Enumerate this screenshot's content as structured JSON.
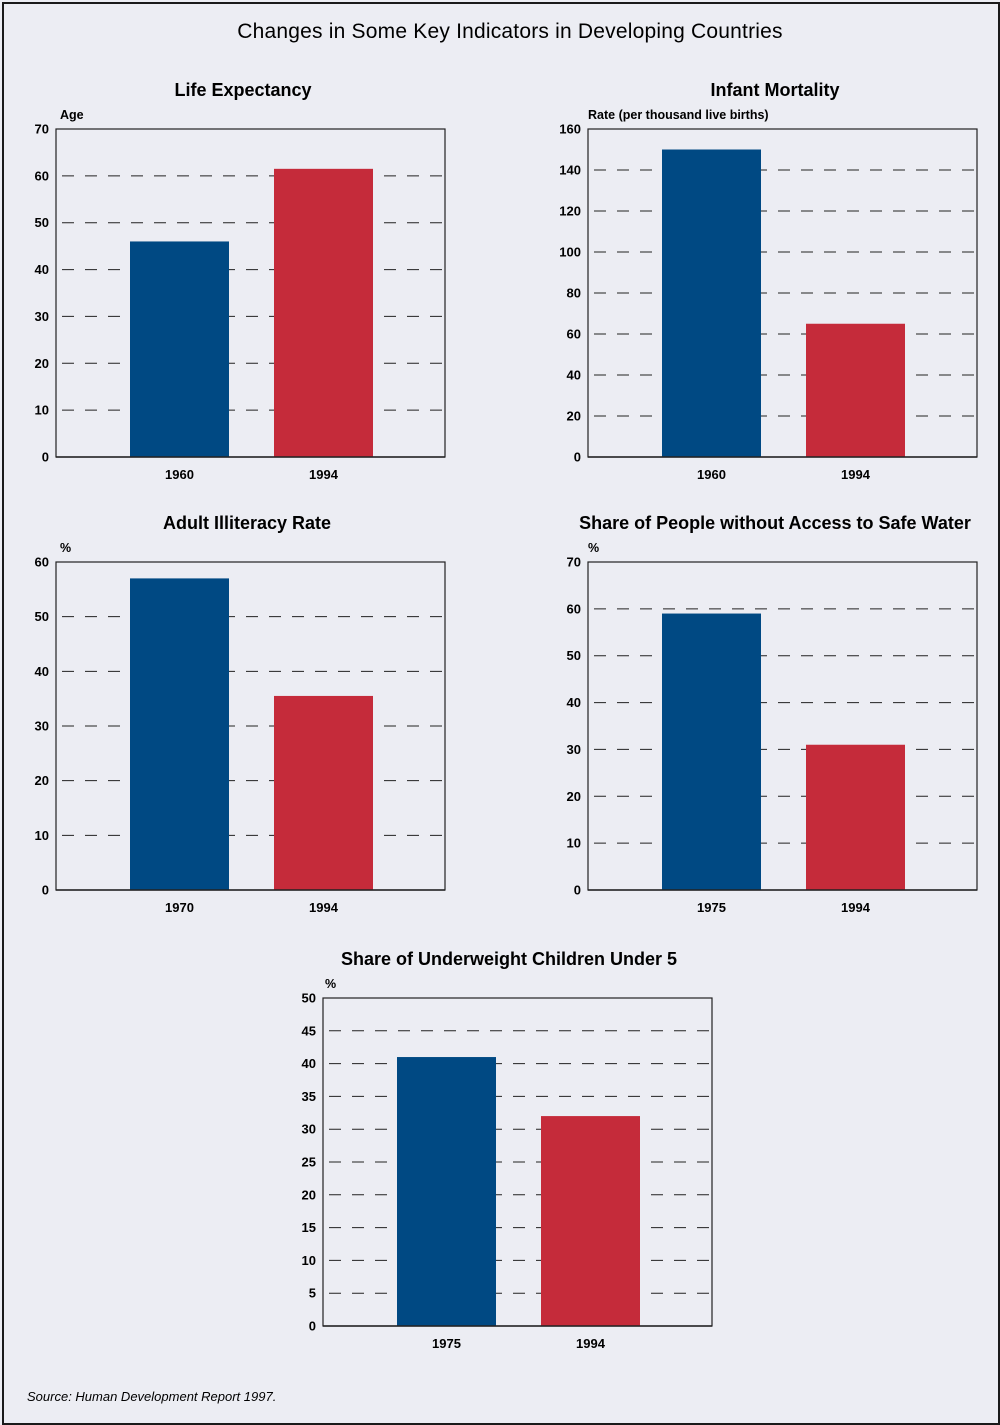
{
  "page_title": "Changes in Some Key Indicators in Developing Countries",
  "source": "Source: Human Development Report 1997.",
  "colors": {
    "first_bar": "#004983",
    "second_bar": "#c52b3a",
    "background": "#ecedf3"
  },
  "chart_data": [
    {
      "type": "bar",
      "title": "Life Expectancy",
      "ylabel": "Age",
      "categories": [
        "1960",
        "1994"
      ],
      "values": [
        46,
        61.5
      ],
      "ylim": [
        0,
        70
      ],
      "yticks": [
        0,
        10,
        20,
        30,
        40,
        50,
        60,
        70
      ],
      "grid": "dashed"
    },
    {
      "type": "bar",
      "title": "Infant Mortality",
      "ylabel": "Rate (per thousand live births)",
      "categories": [
        "1960",
        "1994"
      ],
      "values": [
        150,
        65
      ],
      "ylim": [
        0,
        160
      ],
      "yticks": [
        0,
        20,
        40,
        60,
        80,
        100,
        120,
        140,
        160
      ],
      "grid": "dashed"
    },
    {
      "type": "bar",
      "title": "Adult Illiteracy Rate",
      "ylabel": "%",
      "categories": [
        "1970",
        "1994"
      ],
      "values": [
        57,
        35.5
      ],
      "ylim": [
        0,
        60
      ],
      "yticks": [
        0,
        10,
        20,
        30,
        40,
        50,
        60
      ],
      "grid": "dashed"
    },
    {
      "type": "bar",
      "title": "Share of People without Access to Safe Water",
      "ylabel": "%",
      "categories": [
        "1975",
        "1994"
      ],
      "values": [
        59,
        31
      ],
      "ylim": [
        0,
        70
      ],
      "yticks": [
        0,
        10,
        20,
        30,
        40,
        50,
        60,
        70
      ],
      "grid": "dashed"
    },
    {
      "type": "bar",
      "title": "Share of Underweight Children Under 5",
      "ylabel": "%",
      "categories": [
        "1975",
        "1994"
      ],
      "values": [
        41,
        32
      ],
      "ylim": [
        0,
        50
      ],
      "yticks": [
        0,
        5,
        10,
        15,
        20,
        25,
        30,
        35,
        40,
        45,
        50
      ],
      "grid": "dashed"
    }
  ]
}
